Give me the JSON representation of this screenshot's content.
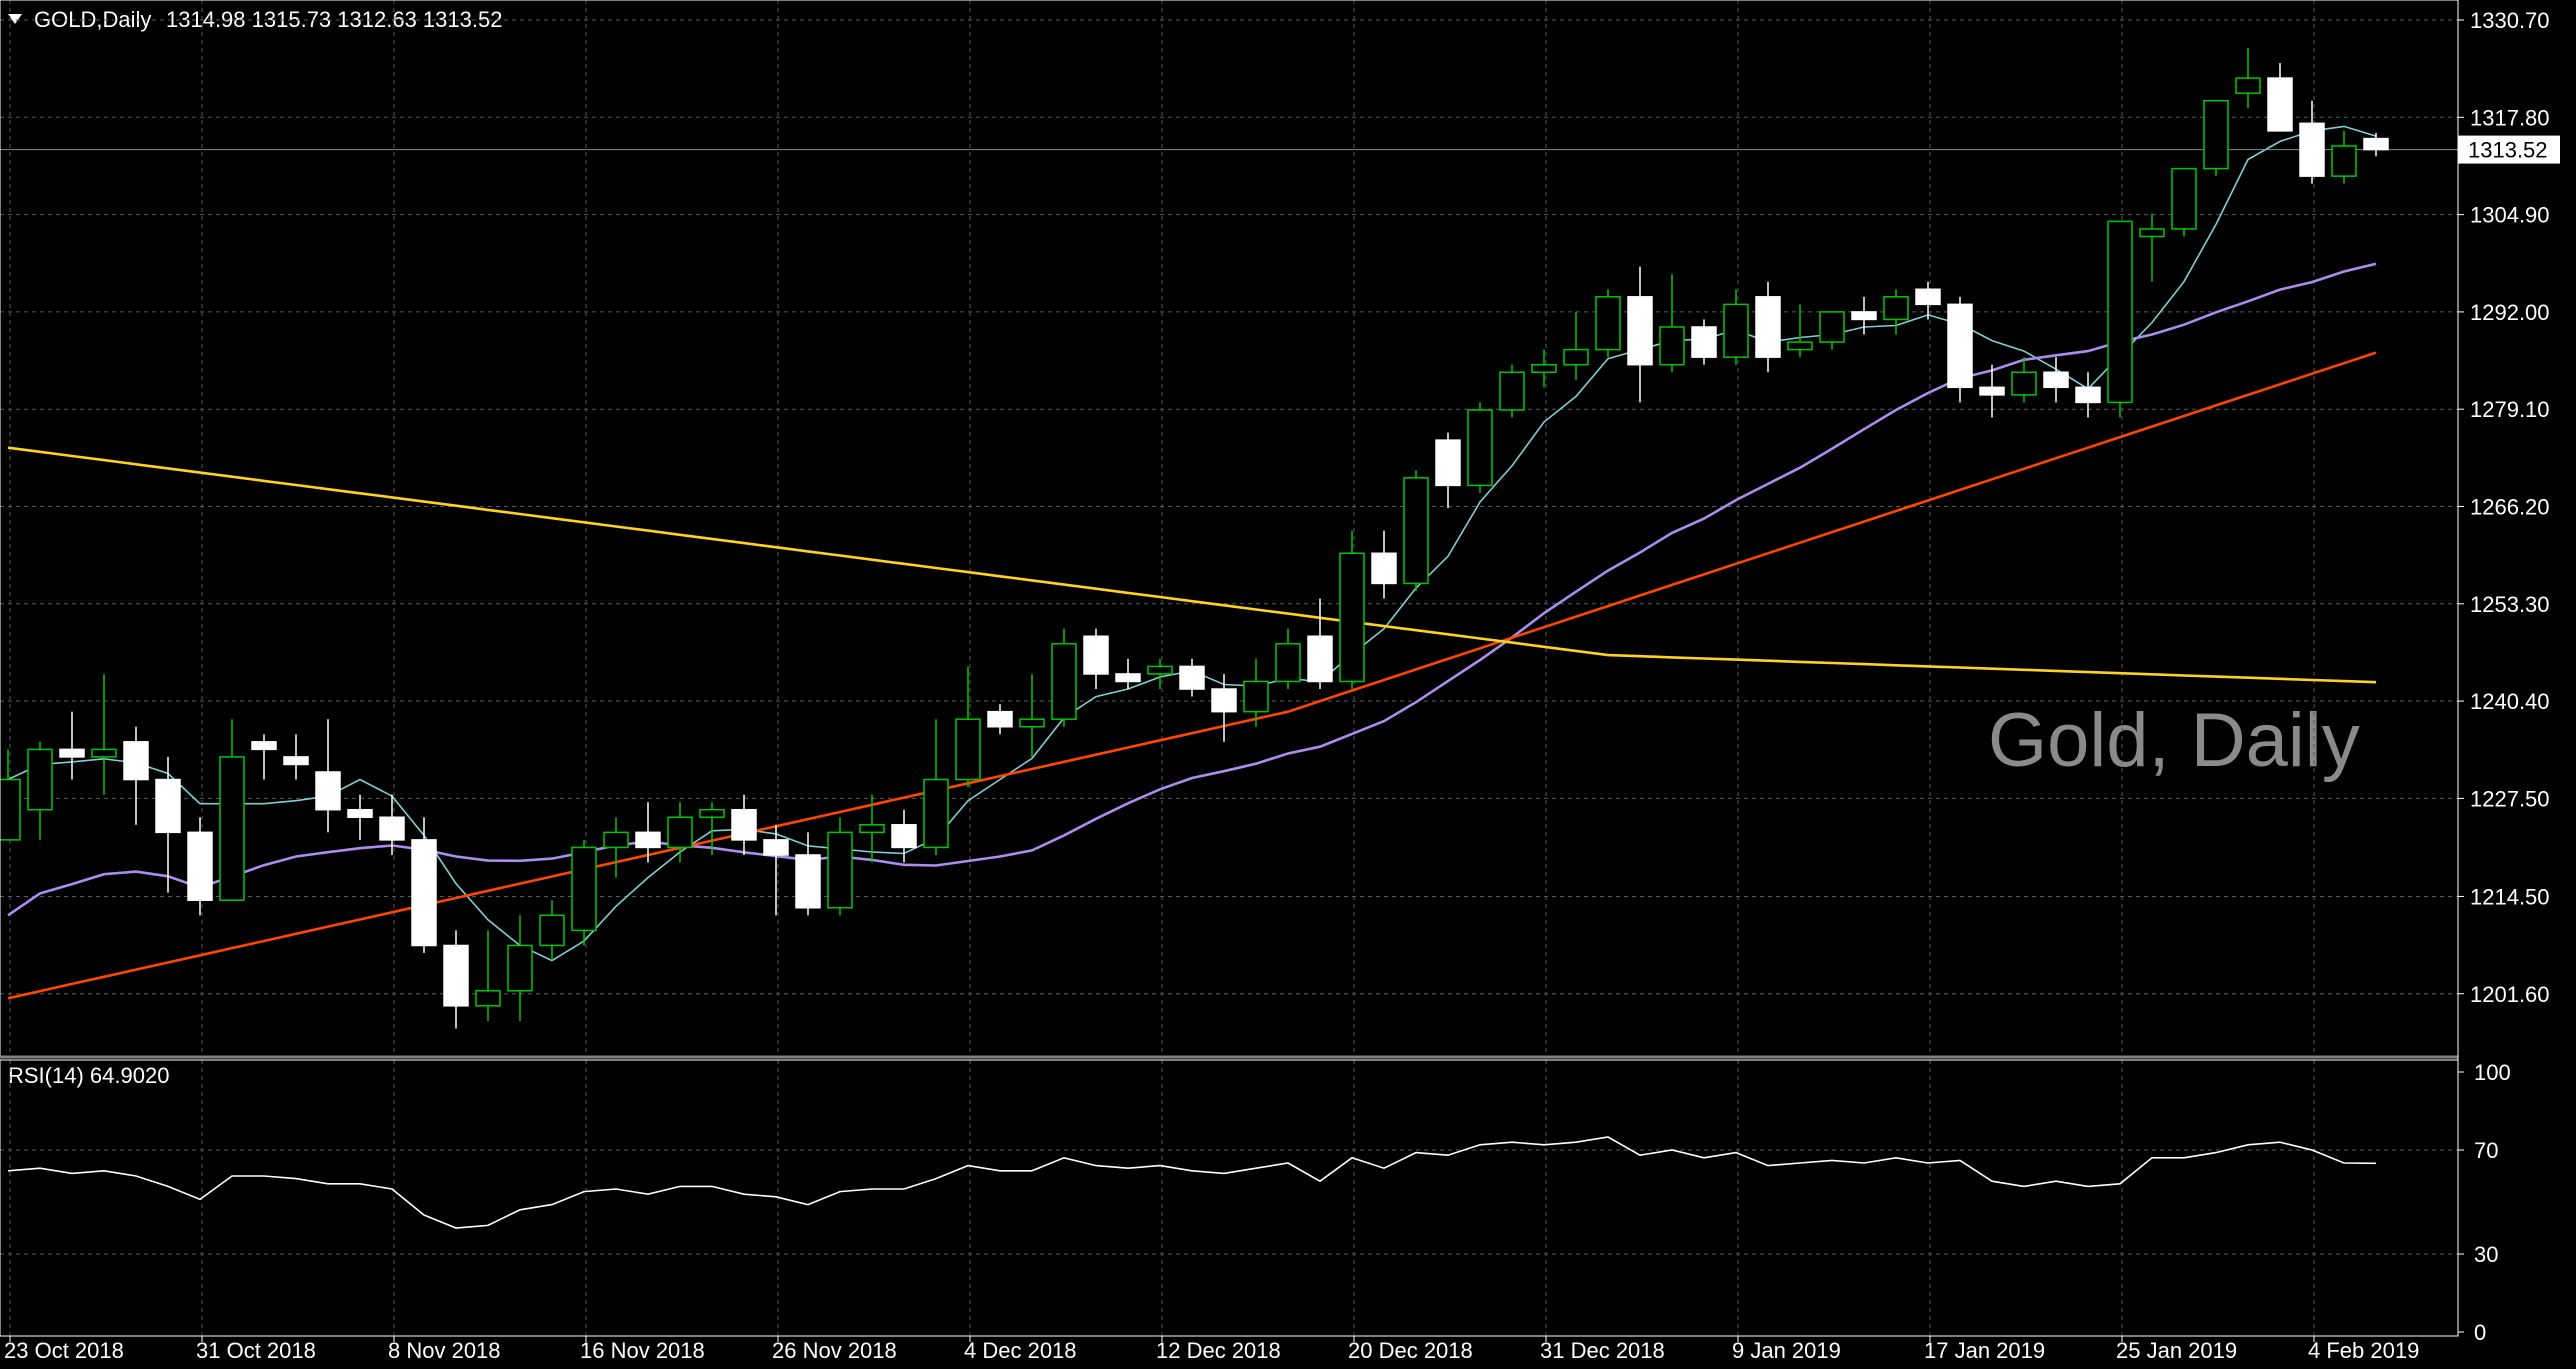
{
  "header": {
    "symbol_period": "GOLD,Daily",
    "ohlc": "1314.98 1315.73 1312.63 1313.52"
  },
  "watermark": "Gold, Daily",
  "rsi_header": "RSI(14) 64.9020",
  "current_price_label": "1313.52",
  "colors": {
    "background": "#000000",
    "grid": "#5a5a5a",
    "axis": "#ffffff",
    "candle_up_body": "#000000",
    "candle_down_body": "#ffffff",
    "candle_wick_up": "#00c800",
    "candle_wick_down": "#ffffff",
    "ma_fast": "#7fcfd6",
    "ma_mid": "#a98ef0",
    "ma_slow": "#ff4500",
    "ma_long": "#ffd21e",
    "rsi": "#ffffff",
    "price_line": "#7f8a94"
  },
  "chart_data": {
    "type": "candlestick",
    "title": "GOLD,Daily",
    "price_axis": {
      "ylim": [
        1190.0,
        1332.0
      ],
      "ticks": [
        1330.7,
        1317.8,
        1304.9,
        1292.0,
        1279.1,
        1266.2,
        1253.3,
        1240.4,
        1227.5,
        1214.5,
        1201.6
      ],
      "tick_labels": [
        "1330.70",
        "1317.80",
        "1304.90",
        "1292.00",
        "1279.10",
        "1266.20",
        "1253.30",
        "1240.40",
        "1227.50",
        "1214.50",
        "1201.60"
      ]
    },
    "date_labels": [
      "23 Oct 2018",
      "31 Oct 2018",
      "8 Nov 2018",
      "16 Nov 2018",
      "26 Nov 2018",
      "4 Dec 2018",
      "12 Dec 2018",
      "20 Dec 2018",
      "31 Dec 2018",
      "9 Jan 2019",
      "17 Jan 2019",
      "25 Jan 2019",
      "4 Feb 2019"
    ],
    "date_label_bar_index": [
      0,
      6,
      12,
      18,
      24,
      30,
      36,
      42,
      48,
      54,
      60,
      66,
      72
    ],
    "candles": [
      [
        1222.0,
        1234.0,
        1222.0,
        1230.0
      ],
      [
        1226.0,
        1235.0,
        1222.0,
        1234.0
      ],
      [
        1234.0,
        1239.0,
        1230.0,
        1233.0
      ],
      [
        1233.0,
        1244.0,
        1228.0,
        1234.0
      ],
      [
        1235.0,
        1237.0,
        1224.0,
        1230.0
      ],
      [
        1230.0,
        1233.0,
        1215.0,
        1223.0
      ],
      [
        1223.0,
        1225.0,
        1212.0,
        1214.0
      ],
      [
        1214.0,
        1238.0,
        1214.0,
        1233.0
      ],
      [
        1235.0,
        1236.0,
        1230.0,
        1234.0
      ],
      [
        1233.0,
        1236.0,
        1230.0,
        1232.0
      ],
      [
        1231.0,
        1238.0,
        1223.0,
        1226.0
      ],
      [
        1226.0,
        1228.0,
        1222.0,
        1225.0
      ],
      [
        1225.0,
        1228.0,
        1220.0,
        1222.0
      ],
      [
        1222.0,
        1225.0,
        1207.0,
        1208.0
      ],
      [
        1208.0,
        1210.0,
        1197.0,
        1200.0
      ],
      [
        1200.0,
        1210.0,
        1198.0,
        1202.0
      ],
      [
        1202.0,
        1212.0,
        1198.0,
        1208.0
      ],
      [
        1208.0,
        1214.0,
        1206.0,
        1212.0
      ],
      [
        1210.0,
        1222.0,
        1208.0,
        1221.0
      ],
      [
        1221.0,
        1225.0,
        1217.0,
        1223.0
      ],
      [
        1223.0,
        1227.0,
        1219.0,
        1221.0
      ],
      [
        1221.0,
        1227.0,
        1219.0,
        1225.0
      ],
      [
        1225.0,
        1227.0,
        1220.0,
        1226.0
      ],
      [
        1226.0,
        1228.0,
        1220.0,
        1222.0
      ],
      [
        1222.0,
        1224.0,
        1212.0,
        1220.0
      ],
      [
        1220.0,
        1223.0,
        1212.0,
        1213.0
      ],
      [
        1213.0,
        1225.0,
        1212.0,
        1223.0
      ],
      [
        1223.0,
        1228.0,
        1219.0,
        1224.0
      ],
      [
        1224.0,
        1226.0,
        1219.0,
        1221.0
      ],
      [
        1221.0,
        1238.0,
        1220.0,
        1230.0
      ],
      [
        1230.0,
        1245.0,
        1229.0,
        1238.0
      ],
      [
        1239.0,
        1240.0,
        1236.0,
        1237.0
      ],
      [
        1237.0,
        1244.0,
        1233.0,
        1238.0
      ],
      [
        1238.0,
        1250.0,
        1237.0,
        1248.0
      ],
      [
        1249.0,
        1250.0,
        1242.0,
        1244.0
      ],
      [
        1244.0,
        1246.0,
        1242.0,
        1243.0
      ],
      [
        1244.0,
        1246.0,
        1242.0,
        1245.0
      ],
      [
        1245.0,
        1246.0,
        1241.0,
        1242.0
      ],
      [
        1242.0,
        1244.0,
        1235.0,
        1239.0
      ],
      [
        1239.0,
        1246.0,
        1237.0,
        1243.0
      ],
      [
        1243.0,
        1250.0,
        1242.0,
        1248.0
      ],
      [
        1249.0,
        1254.0,
        1242.0,
        1243.0
      ],
      [
        1243.0,
        1263.0,
        1242.0,
        1260.0
      ],
      [
        1260.0,
        1263.0,
        1254.0,
        1256.0
      ],
      [
        1256.0,
        1271.0,
        1255.0,
        1270.0
      ],
      [
        1275.0,
        1276.0,
        1266.0,
        1269.0
      ],
      [
        1269.0,
        1280.0,
        1268.0,
        1279.0
      ],
      [
        1279.0,
        1285.0,
        1278.0,
        1284.0
      ],
      [
        1284.0,
        1287.0,
        1282.0,
        1285.0
      ],
      [
        1285.0,
        1292.0,
        1283.0,
        1287.0
      ],
      [
        1287.0,
        1295.0,
        1286.0,
        1294.0
      ],
      [
        1294.0,
        1298.0,
        1280.0,
        1285.0
      ],
      [
        1285.0,
        1297.0,
        1284.0,
        1290.0
      ],
      [
        1290.0,
        1291.0,
        1285.0,
        1286.0
      ],
      [
        1286.0,
        1295.0,
        1285.0,
        1293.0
      ],
      [
        1294.0,
        1296.0,
        1284.0,
        1286.0
      ],
      [
        1287.0,
        1293.0,
        1286.0,
        1288.0
      ],
      [
        1288.0,
        1292.0,
        1287.0,
        1292.0
      ],
      [
        1292.0,
        1294.0,
        1289.0,
        1291.0
      ],
      [
        1291.0,
        1295.0,
        1289.0,
        1294.0
      ],
      [
        1295.0,
        1296.0,
        1291.0,
        1293.0
      ],
      [
        1293.0,
        1294.0,
        1280.0,
        1282.0
      ],
      [
        1282.0,
        1285.0,
        1278.0,
        1281.0
      ],
      [
        1281.0,
        1286.0,
        1280.0,
        1284.0
      ],
      [
        1284.0,
        1286.0,
        1280.0,
        1282.0
      ],
      [
        1282.0,
        1284.0,
        1278.0,
        1280.0
      ],
      [
        1280.0,
        1304.0,
        1278.0,
        1304.0
      ],
      [
        1302.0,
        1305.0,
        1296.0,
        1303.0
      ],
      [
        1303.0,
        1311.0,
        1302.0,
        1311.0
      ],
      [
        1311.0,
        1320.0,
        1310.0,
        1320.0
      ],
      [
        1321.0,
        1327.0,
        1319.0,
        1323.0
      ],
      [
        1323.0,
        1325.0,
        1316.0,
        1316.0
      ],
      [
        1317.0,
        1320.0,
        1309.0,
        1310.0
      ],
      [
        1310.0,
        1316.0,
        1309.0,
        1314.0
      ],
      [
        1314.98,
        1315.73,
        1312.63,
        1313.52
      ]
    ],
    "rsi": {
      "name": "RSI(14)",
      "last_value": 64.902,
      "ylim": [
        0,
        100
      ],
      "ticks": [
        100,
        70,
        30,
        0
      ],
      "levels": [
        70,
        30
      ],
      "values": [
        62,
        63,
        61,
        62,
        60,
        56,
        51,
        60,
        60,
        59,
        57,
        57,
        55,
        45,
        40,
        41,
        47,
        49,
        54,
        55,
        53,
        56,
        56,
        53,
        52,
        49,
        54,
        55,
        55,
        59,
        64,
        62,
        62,
        67,
        64,
        63,
        64,
        62,
        61,
        63,
        65,
        58,
        67,
        63,
        69,
        68,
        72,
        73,
        72,
        73,
        75,
        68,
        70,
        67,
        69,
        64,
        65,
        66,
        65,
        67,
        65,
        66,
        58,
        56,
        58,
        56,
        57,
        67,
        67,
        69,
        72,
        73,
        70,
        65,
        64.902
      ]
    }
  }
}
